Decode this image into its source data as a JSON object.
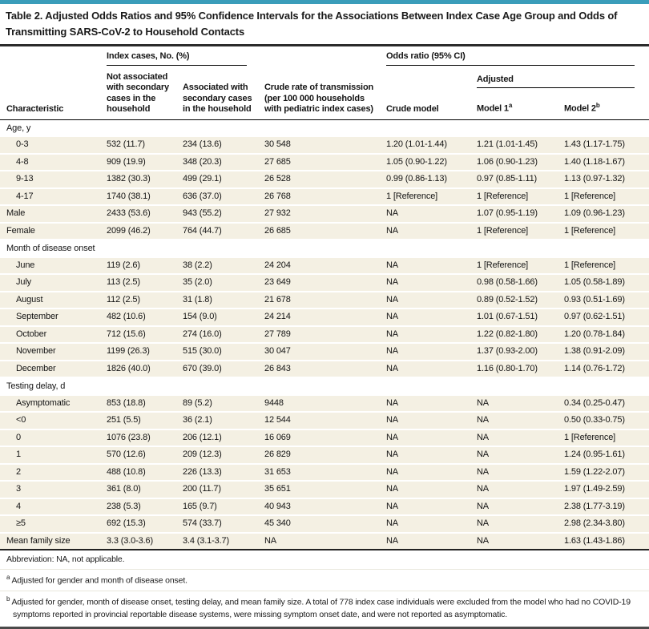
{
  "title": "Table 2. Adjusted Odds Ratios and 95% Confidence Intervals for the Associations Between Index Case Age Group and Odds of Transmitting SARS-CoV-2 to Household Contacts",
  "colors": {
    "accent_teal": "#3a9dba",
    "row_stripe": "#f4f0e3",
    "rule_dark": "#2b2b2b"
  },
  "table": {
    "header": {
      "characteristic": "Characteristic",
      "index_cases_group": "Index cases, No. (%)",
      "not_associated": "Not associated with secondary cases in the household",
      "associated": "Associated with secondary cases in the household",
      "crude_rate": "Crude rate of transmission (per 100 000 households with pediatric index cases)",
      "odds_ratio_group": "Odds ratio (95% CI)",
      "crude_model": "Crude model",
      "adjusted": "Adjusted",
      "model1": {
        "label": "Model 1",
        "sup": "a"
      },
      "model2": {
        "label": "Model 2",
        "sup": "b"
      }
    },
    "rows": [
      {
        "type": "section",
        "label": "Age, y"
      },
      {
        "type": "data",
        "indent": true,
        "label": "0-3",
        "cells": [
          "532 (11.7)",
          "234 (13.6)",
          "30 548",
          "1.20 (1.01-1.44)",
          "1.21 (1.01-1.45)",
          "1.43 (1.17-1.75)"
        ]
      },
      {
        "type": "data",
        "indent": true,
        "label": "4-8",
        "cells": [
          "909 (19.9)",
          "348 (20.3)",
          "27 685",
          "1.05 (0.90-1.22)",
          "1.06 (0.90-1.23)",
          "1.40 (1.18-1.67)"
        ]
      },
      {
        "type": "data",
        "indent": true,
        "label": "9-13",
        "cells": [
          "1382 (30.3)",
          "499 (29.1)",
          "26 528",
          "0.99 (0.86-1.13)",
          "0.97 (0.85-1.11)",
          "1.13 (0.97-1.32)"
        ]
      },
      {
        "type": "data",
        "indent": true,
        "label": "4-17",
        "cells": [
          "1740 (38.1)",
          "636 (37.0)",
          "26 768",
          "1 [Reference]",
          "1 [Reference]",
          "1 [Reference]"
        ]
      },
      {
        "type": "data",
        "indent": false,
        "label": "Male",
        "cells": [
          "2433 (53.6)",
          "943 (55.2)",
          "27 932",
          "NA",
          "1.07 (0.95-1.19)",
          "1.09 (0.96-1.23)"
        ]
      },
      {
        "type": "data",
        "indent": false,
        "label": "Female",
        "cells": [
          "2099 (46.2)",
          "764 (44.7)",
          "26 685",
          "NA",
          "1 [Reference]",
          "1 [Reference]"
        ]
      },
      {
        "type": "section",
        "label": "Month of disease onset"
      },
      {
        "type": "data",
        "indent": true,
        "label": "June",
        "cells": [
          "119 (2.6)",
          "38 (2.2)",
          "24 204",
          "NA",
          "1 [Reference]",
          "1 [Reference]"
        ]
      },
      {
        "type": "data",
        "indent": true,
        "label": "July",
        "cells": [
          "113 (2.5)",
          "35 (2.0)",
          "23 649",
          "NA",
          "0.98 (0.58-1.66)",
          "1.05 (0.58-1.89)"
        ]
      },
      {
        "type": "data",
        "indent": true,
        "label": "August",
        "cells": [
          "112 (2.5)",
          "31 (1.8)",
          "21 678",
          "NA",
          "0.89 (0.52-1.52)",
          "0.93 (0.51-1.69)"
        ]
      },
      {
        "type": "data",
        "indent": true,
        "label": "September",
        "cells": [
          "482 (10.6)",
          "154 (9.0)",
          "24 214",
          "NA",
          "1.01 (0.67-1.51)",
          "0.97 (0.62-1.51)"
        ]
      },
      {
        "type": "data",
        "indent": true,
        "label": "October",
        "cells": [
          "712 (15.6)",
          "274 (16.0)",
          "27 789",
          "NA",
          "1.22 (0.82-1.80)",
          "1.20 (0.78-1.84)"
        ]
      },
      {
        "type": "data",
        "indent": true,
        "label": "November",
        "cells": [
          "1199 (26.3)",
          "515 (30.0)",
          "30 047",
          "NA",
          "1.37 (0.93-2.00)",
          "1.38 (0.91-2.09)"
        ]
      },
      {
        "type": "data",
        "indent": true,
        "label": "December",
        "cells": [
          "1826 (40.0)",
          "670 (39.0)",
          "26 843",
          "NA",
          "1.16 (0.80-1.70)",
          "1.14 (0.76-1.72)"
        ]
      },
      {
        "type": "section",
        "label": "Testing delay, d"
      },
      {
        "type": "data",
        "indent": true,
        "label": "Asymptomatic",
        "cells": [
          "853 (18.8)",
          "89 (5.2)",
          "9448",
          "NA",
          "NA",
          "0.34 (0.25-0.47)"
        ]
      },
      {
        "type": "data",
        "indent": true,
        "label": "<0",
        "cells": [
          "251 (5.5)",
          "36 (2.1)",
          "12 544",
          "NA",
          "NA",
          "0.50 (0.33-0.75)"
        ]
      },
      {
        "type": "data",
        "indent": true,
        "label": "0",
        "cells": [
          "1076 (23.8)",
          "206 (12.1)",
          "16 069",
          "NA",
          "NA",
          "1 [Reference]"
        ]
      },
      {
        "type": "data",
        "indent": true,
        "label": "1",
        "cells": [
          "570 (12.6)",
          "209 (12.3)",
          "26 829",
          "NA",
          "NA",
          "1.24 (0.95-1.61)"
        ]
      },
      {
        "type": "data",
        "indent": true,
        "label": "2",
        "cells": [
          "488 (10.8)",
          "226 (13.3)",
          "31 653",
          "NA",
          "NA",
          "1.59 (1.22-2.07)"
        ]
      },
      {
        "type": "data",
        "indent": true,
        "label": "3",
        "cells": [
          "361 (8.0)",
          "200 (11.7)",
          "35 651",
          "NA",
          "NA",
          "1.97 (1.49-2.59)"
        ]
      },
      {
        "type": "data",
        "indent": true,
        "label": "4",
        "cells": [
          "238 (5.3)",
          "165 (9.7)",
          "40 943",
          "NA",
          "NA",
          "2.38 (1.77-3.19)"
        ]
      },
      {
        "type": "data",
        "indent": true,
        "label": "≥5",
        "cells": [
          "692 (15.3)",
          "574 (33.7)",
          "45 340",
          "NA",
          "NA",
          "2.98 (2.34-3.80)"
        ]
      },
      {
        "type": "data",
        "indent": false,
        "label": "Mean family size",
        "cells": [
          "3.3 (3.0-3.6)",
          "3.4 (3.1-3.7)",
          "NA",
          "NA",
          "NA",
          "1.63 (1.43-1.86)"
        ]
      }
    ]
  },
  "footnotes": [
    {
      "sup": "",
      "text": "Abbreviation: NA, not applicable."
    },
    {
      "sup": "a",
      "text": "Adjusted for gender and month of disease onset."
    },
    {
      "sup": "b",
      "text": "Adjusted for gender, month of disease onset, testing delay, and mean family size. A total of 778 index case individuals were excluded from the model who had no COVID-19 symptoms reported in provincial reportable disease systems, were missing symptom onset date, and were not reported as asymptomatic."
    }
  ]
}
